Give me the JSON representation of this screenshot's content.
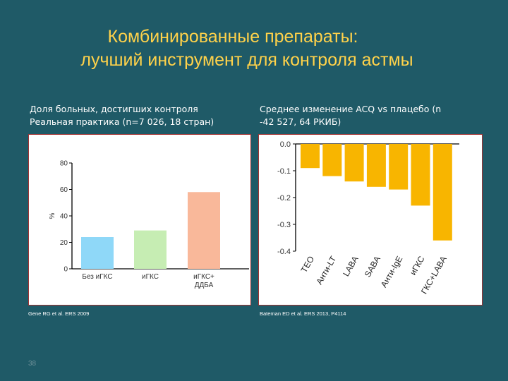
{
  "slide": {
    "title_line1": "Комбинированные препараты:",
    "title_line2": "лучший инструмент для контроля астмы",
    "left_heading_line1": "Доля больных, достигших контроля",
    "left_heading_line2": "Реальная практика (n=7 026, 18 стран)",
    "right_heading_line1": "Среднее изменение ACQ vs плацебо (n",
    "right_heading_line2": "-42 527, 64 РКИБ)",
    "left_citation": "Gene RG et al. ERS 2009",
    "right_citation": "Bateman ED et al. ERS 2013, P4114",
    "page_number": "38",
    "colors": {
      "background": "#1f5a67",
      "title": "#ffd24a",
      "panel_border": "#a33232"
    }
  },
  "chart_data": [
    {
      "type": "bar",
      "categories": [
        "Без иГКС",
        "иГКС",
        "иГКС+\nДДБА"
      ],
      "category_lines": [
        [
          "Без иГКС"
        ],
        [
          "иГКС"
        ],
        [
          "иГКС+",
          "ДДБА"
        ]
      ],
      "values": [
        24,
        29,
        58
      ],
      "colors": [
        "#8fd8f8",
        "#c6edb3",
        "#f9b89a"
      ],
      "ylabel": "%",
      "ylim": [
        0,
        80
      ],
      "yticks": [
        "0",
        "20",
        "40",
        "60",
        "80"
      ],
      "grid": false
    },
    {
      "type": "bar",
      "categories": [
        "ТЕО",
        "Анти-LT",
        "LABA",
        "SABA",
        "Анти-IgE",
        "иГКС",
        "ГКС+LABA"
      ],
      "values": [
        -0.09,
        -0.12,
        -0.14,
        -0.16,
        -0.17,
        -0.23,
        -0.36
      ],
      "color": "#f8b500",
      "ylim": [
        -0.4,
        0.0
      ],
      "yticks": [
        "0.0",
        "-0.1",
        "-0.2",
        "-0.3",
        "-0.4"
      ],
      "grid": false
    }
  ]
}
